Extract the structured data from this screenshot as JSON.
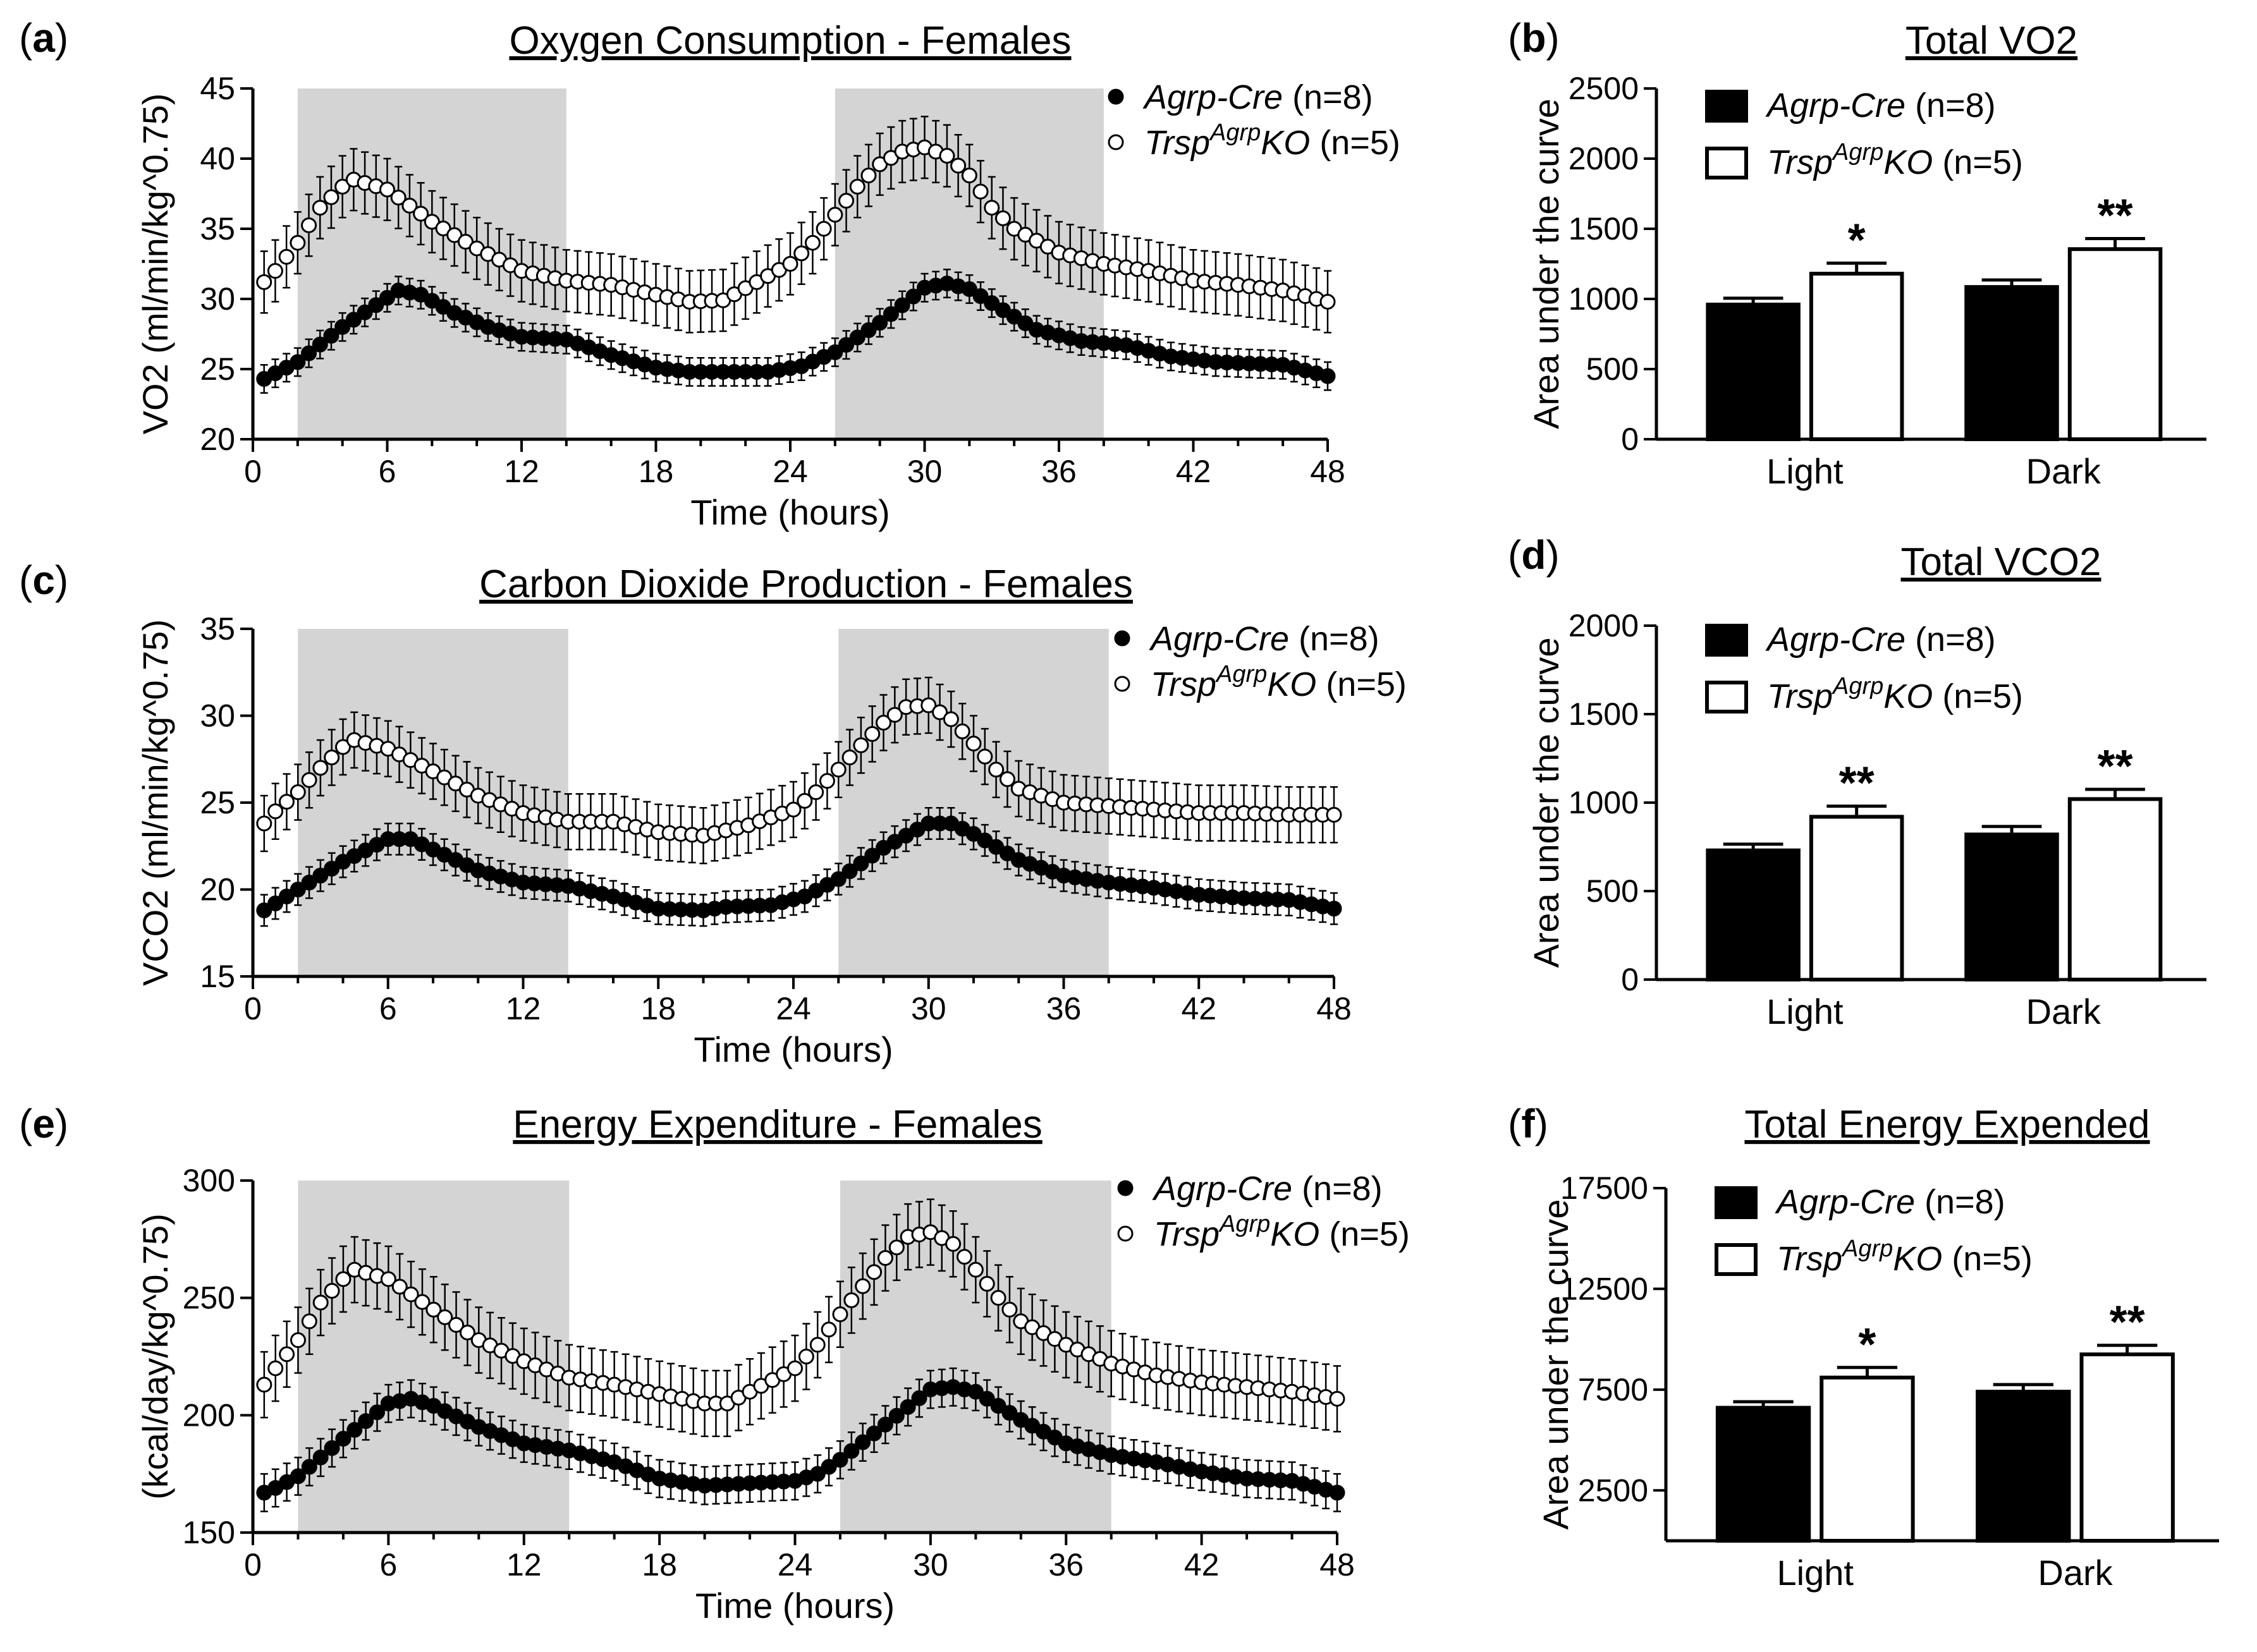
{
  "chart_data": [
    {
      "id": "a",
      "panel_label": "a",
      "type": "scatter",
      "title": "Oxygen Consumption - Females",
      "xlabel": "Time (hours)",
      "ylabel": "VO2 (ml/min/kg^0.75)",
      "xlim": [
        0,
        48
      ],
      "ylim": [
        20,
        45
      ],
      "xticks": [
        0,
        6,
        12,
        18,
        24,
        30,
        36,
        42,
        48
      ],
      "yticks": [
        20,
        25,
        30,
        35,
        40,
        45
      ],
      "dark_periods": [
        [
          2,
          14
        ],
        [
          26,
          38
        ]
      ],
      "sample_interval_hours": 0.5,
      "legend_position": "top-right",
      "series": [
        {
          "name": "Agrp-Cre (n=8)",
          "name_main": "Agrp-Cre",
          "name_rest": " (n=8)",
          "marker": "filled",
          "err": 1.0,
          "keypoints": [
            [
              0.5,
              24.3
            ],
            [
              1,
              24.7
            ],
            [
              2,
              25.5
            ],
            [
              4,
              28.0
            ],
            [
              6.5,
              30.6
            ],
            [
              7.5,
              30.3
            ],
            [
              9,
              29
            ],
            [
              10.5,
              28
            ],
            [
              12,
              27.3
            ],
            [
              14,
              27.1
            ],
            [
              16,
              26
            ],
            [
              18,
              25.1
            ],
            [
              19.5,
              24.8
            ],
            [
              23,
              24.8
            ],
            [
              24.5,
              25.2
            ],
            [
              26,
              26.2
            ],
            [
              28,
              28.3
            ],
            [
              30,
              30.8
            ],
            [
              31,
              31.1
            ],
            [
              32,
              30.7
            ],
            [
              33.5,
              29.2
            ],
            [
              35,
              27.8
            ],
            [
              37,
              27
            ],
            [
              39,
              26.7
            ],
            [
              41,
              25.9
            ],
            [
              43,
              25.5
            ],
            [
              46,
              25.3
            ],
            [
              48,
              24.5
            ]
          ]
        },
        {
          "name": "TrspAgrpKO (n=5)",
          "name_main": "Trsp",
          "name_sup": "Agrp",
          "name_tail": "KO",
          "name_rest": " (n=5)",
          "marker": "open",
          "err": 2.2,
          "keypoints": [
            [
              0.5,
              31.2
            ],
            [
              1,
              32
            ],
            [
              2,
              34
            ],
            [
              3,
              36.5
            ],
            [
              4,
              38
            ],
            [
              4.5,
              38.5
            ],
            [
              6,
              37.8
            ],
            [
              8,
              35.5
            ],
            [
              10,
              33.6
            ],
            [
              12,
              32
            ],
            [
              14,
              31.3
            ],
            [
              16,
              31
            ],
            [
              18,
              30.3
            ],
            [
              19.5,
              29.8
            ],
            [
              21,
              29.9
            ],
            [
              22.5,
              31.2
            ],
            [
              24,
              32.5
            ],
            [
              25,
              34
            ],
            [
              26,
              36
            ],
            [
              27,
              38
            ],
            [
              28,
              39.6
            ],
            [
              29,
              40.5
            ],
            [
              30,
              40.8
            ],
            [
              31,
              40.2
            ],
            [
              32,
              38.8
            ],
            [
              33,
              36.5
            ],
            [
              34,
              35
            ],
            [
              36,
              33.3
            ],
            [
              38,
              32.5
            ],
            [
              40,
              32
            ],
            [
              42,
              31.3
            ],
            [
              44,
              31
            ],
            [
              46,
              30.6
            ],
            [
              48,
              29.8
            ]
          ]
        }
      ]
    },
    {
      "id": "b",
      "panel_label": "b",
      "type": "bar",
      "title": "Total VO2",
      "ylabel": "Area under the curve",
      "categories": [
        "Light",
        "Dark"
      ],
      "ylim": [
        0,
        2500
      ],
      "yticks": [
        0,
        500,
        1000,
        1500,
        2000,
        2500
      ],
      "legend_position": "top-left",
      "series": [
        {
          "name": "Agrp-Cre (n=8)",
          "name_main": "Agrp-Cre",
          "name_rest": " (n=8)",
          "fill": "#000000",
          "values": [
            960,
            1085
          ],
          "errors": [
            45,
            50
          ],
          "marks": [
            "",
            ""
          ]
        },
        {
          "name": "TrspAgrpKO (n=5)",
          "name_main": "Trsp",
          "name_sup": "Agrp",
          "name_tail": "KO",
          "name_rest": " (n=5)",
          "fill": "#ffffff",
          "values": [
            1180,
            1355
          ],
          "errors": [
            75,
            75
          ],
          "marks": [
            "*",
            "**"
          ]
        }
      ]
    },
    {
      "id": "c",
      "panel_label": "c",
      "type": "scatter",
      "title": "Carbon Dioxide Production - Females",
      "xlabel": "Time (hours)",
      "ylabel": "VCO2 (ml/min/kg^0.75)",
      "xlim": [
        0,
        48
      ],
      "ylim": [
        15,
        35
      ],
      "xticks": [
        0,
        6,
        12,
        18,
        24,
        30,
        36,
        42,
        48
      ],
      "yticks": [
        15,
        20,
        25,
        30,
        35
      ],
      "dark_periods": [
        [
          2,
          14
        ],
        [
          26,
          38
        ]
      ],
      "sample_interval_hours": 0.5,
      "legend_position": "top-right",
      "series": [
        {
          "name": "Agrp-Cre (n=8)",
          "name_main": "Agrp-Cre",
          "name_rest": " (n=8)",
          "marker": "filled",
          "err": 0.9,
          "keypoints": [
            [
              0.5,
              18.8
            ],
            [
              1,
              19.2
            ],
            [
              2,
              20
            ],
            [
              4,
              21.6
            ],
            [
              6,
              22.9
            ],
            [
              7,
              22.9
            ],
            [
              8,
              22.3
            ],
            [
              10,
              21.1
            ],
            [
              12,
              20.4
            ],
            [
              14,
              20.2
            ],
            [
              16,
              19.6
            ],
            [
              18,
              18.9
            ],
            [
              20,
              18.8
            ],
            [
              21,
              19
            ],
            [
              23,
              19.1
            ],
            [
              24.5,
              19.6
            ],
            [
              26,
              20.6
            ],
            [
              28,
              22.4
            ],
            [
              30,
              23.8
            ],
            [
              31,
              23.8
            ],
            [
              32,
              23.2
            ],
            [
              34,
              21.7
            ],
            [
              36,
              20.8
            ],
            [
              38,
              20.4
            ],
            [
              40,
              20.1
            ],
            [
              42,
              19.7
            ],
            [
              44,
              19.5
            ],
            [
              46,
              19.4
            ],
            [
              48,
              18.9
            ]
          ]
        },
        {
          "name": "TrspAgrpKO (n=5)",
          "name_main": "Trsp",
          "name_sup": "Agrp",
          "name_tail": "KO",
          "name_rest": " (n=5)",
          "marker": "open",
          "err": 1.6,
          "keypoints": [
            [
              0.5,
              23.8
            ],
            [
              1,
              24.5
            ],
            [
              2,
              25.6
            ],
            [
              3,
              27
            ],
            [
              4,
              28.2
            ],
            [
              4.5,
              28.6
            ],
            [
              6,
              28.1
            ],
            [
              8,
              26.8
            ],
            [
              10,
              25.4
            ],
            [
              12,
              24.4
            ],
            [
              14,
              23.9
            ],
            [
              16,
              23.9
            ],
            [
              18,
              23.3
            ],
            [
              20,
              23.1
            ],
            [
              22,
              23.7
            ],
            [
              24,
              24.6
            ],
            [
              25,
              25.6
            ],
            [
              26,
              26.9
            ],
            [
              27,
              28.3
            ],
            [
              28,
              29.6
            ],
            [
              29,
              30.5
            ],
            [
              30,
              30.6
            ],
            [
              31,
              29.8
            ],
            [
              32,
              28.4
            ],
            [
              33,
              26.9
            ],
            [
              34,
              25.8
            ],
            [
              36,
              25
            ],
            [
              38,
              24.8
            ],
            [
              40,
              24.6
            ],
            [
              42,
              24.4
            ],
            [
              44,
              24.4
            ],
            [
              46,
              24.3
            ],
            [
              48,
              24.3
            ]
          ]
        }
      ]
    },
    {
      "id": "d",
      "panel_label": "d",
      "type": "bar",
      "title": "Total VCO2",
      "ylabel": "Area under the curve",
      "categories": [
        "Light",
        "Dark"
      ],
      "ylim": [
        0,
        2000
      ],
      "yticks": [
        0,
        500,
        1000,
        1500,
        2000
      ],
      "legend_position": "top-left",
      "series": [
        {
          "name": "Agrp-Cre (n=8)",
          "name_main": "Agrp-Cre",
          "name_rest": " (n=8)",
          "fill": "#000000",
          "values": [
            730,
            820
          ],
          "errors": [
            35,
            45
          ],
          "marks": [
            "",
            ""
          ]
        },
        {
          "name": "TrspAgrpKO (n=5)",
          "name_main": "Trsp",
          "name_sup": "Agrp",
          "name_tail": "KO",
          "name_rest": " (n=5)",
          "fill": "#ffffff",
          "values": [
            920,
            1020
          ],
          "errors": [
            60,
            55
          ],
          "marks": [
            "**",
            "**"
          ]
        }
      ]
    },
    {
      "id": "e",
      "panel_label": "e",
      "type": "scatter",
      "title": "Energy Expenditure - Females",
      "xlabel": "Time (hours)",
      "ylabel": "(kcal/day/kg^0.75)",
      "xlim": [
        0,
        48
      ],
      "ylim": [
        150,
        300
      ],
      "xticks": [
        0,
        6,
        12,
        18,
        24,
        30,
        36,
        42,
        48
      ],
      "yticks": [
        150,
        200,
        250,
        300
      ],
      "dark_periods": [
        [
          2,
          14
        ],
        [
          26,
          38
        ]
      ],
      "sample_interval_hours": 0.5,
      "legend_position": "top-right",
      "series": [
        {
          "name": "Agrp-Cre (n=8)",
          "name_main": "Agrp-Cre",
          "name_rest": " (n=8)",
          "marker": "filled",
          "err": 8,
          "keypoints": [
            [
              0.5,
              167
            ],
            [
              1,
              169
            ],
            [
              2,
              174
            ],
            [
              4,
              190
            ],
            [
              6,
              205
            ],
            [
              7,
              207
            ],
            [
              8,
              204
            ],
            [
              10,
              195
            ],
            [
              12,
              188
            ],
            [
              14,
              185
            ],
            [
              16,
              180
            ],
            [
              18,
              173
            ],
            [
              20,
              170
            ],
            [
              22,
              171
            ],
            [
              24,
              172
            ],
            [
              25,
              175
            ],
            [
              26,
              181
            ],
            [
              28,
              196
            ],
            [
              30,
              211
            ],
            [
              31,
              212
            ],
            [
              32,
              210
            ],
            [
              34,
              198
            ],
            [
              36,
              188
            ],
            [
              38,
              183
            ],
            [
              40,
              180
            ],
            [
              42,
              176
            ],
            [
              44,
              173
            ],
            [
              46,
              172
            ],
            [
              48,
              167
            ]
          ]
        },
        {
          "name": "TrspAgrpKO (n=5)",
          "name_main": "Trsp",
          "name_sup": "Agrp",
          "name_tail": "KO",
          "name_rest": " (n=5)",
          "marker": "open",
          "err": 14,
          "keypoints": [
            [
              0.5,
              213
            ],
            [
              1,
              220
            ],
            [
              2,
              232
            ],
            [
              3,
              248
            ],
            [
              4,
              258
            ],
            [
              4.5,
              262
            ],
            [
              6,
              258
            ],
            [
              8,
              245
            ],
            [
              10,
              232
            ],
            [
              12,
              223
            ],
            [
              14,
              216
            ],
            [
              16,
              213
            ],
            [
              18,
              209
            ],
            [
              20,
              205
            ],
            [
              21,
              205
            ],
            [
              22,
              210
            ],
            [
              24,
              220
            ],
            [
              25,
              230
            ],
            [
              26,
              243
            ],
            [
              27,
              255
            ],
            [
              28,
              267
            ],
            [
              29,
              276
            ],
            [
              30,
              278
            ],
            [
              31,
              273
            ],
            [
              32,
              262
            ],
            [
              33,
              250
            ],
            [
              34,
              240
            ],
            [
              36,
              230
            ],
            [
              38,
              222
            ],
            [
              40,
              217
            ],
            [
              42,
              214
            ],
            [
              44,
              212
            ],
            [
              46,
              210
            ],
            [
              48,
              207
            ]
          ]
        }
      ]
    },
    {
      "id": "f",
      "panel_label": "f",
      "type": "bar",
      "title": "Total Energy Expended",
      "ylabel": "Area under the curve",
      "categories": [
        "Light",
        "Dark"
      ],
      "ylim": [
        0,
        17500
      ],
      "yticks": [
        2500,
        7500,
        12500,
        17500
      ],
      "legend_position": "top-left",
      "series": [
        {
          "name": "Agrp-Cre (n=8)",
          "name_main": "Agrp-Cre",
          "name_rest": " (n=8)",
          "fill": "#000000",
          "values": [
            6600,
            7400
          ],
          "errors": [
            300,
            350
          ],
          "marks": [
            "",
            ""
          ]
        },
        {
          "name": "TrspAgrpKO (n=5)",
          "name_main": "Trsp",
          "name_sup": "Agrp",
          "name_tail": "KO",
          "name_rest": " (n=5)",
          "fill": "#ffffff",
          "values": [
            8100,
            9250
          ],
          "errors": [
            500,
            450
          ],
          "marks": [
            "*",
            "**"
          ]
        }
      ]
    }
  ]
}
